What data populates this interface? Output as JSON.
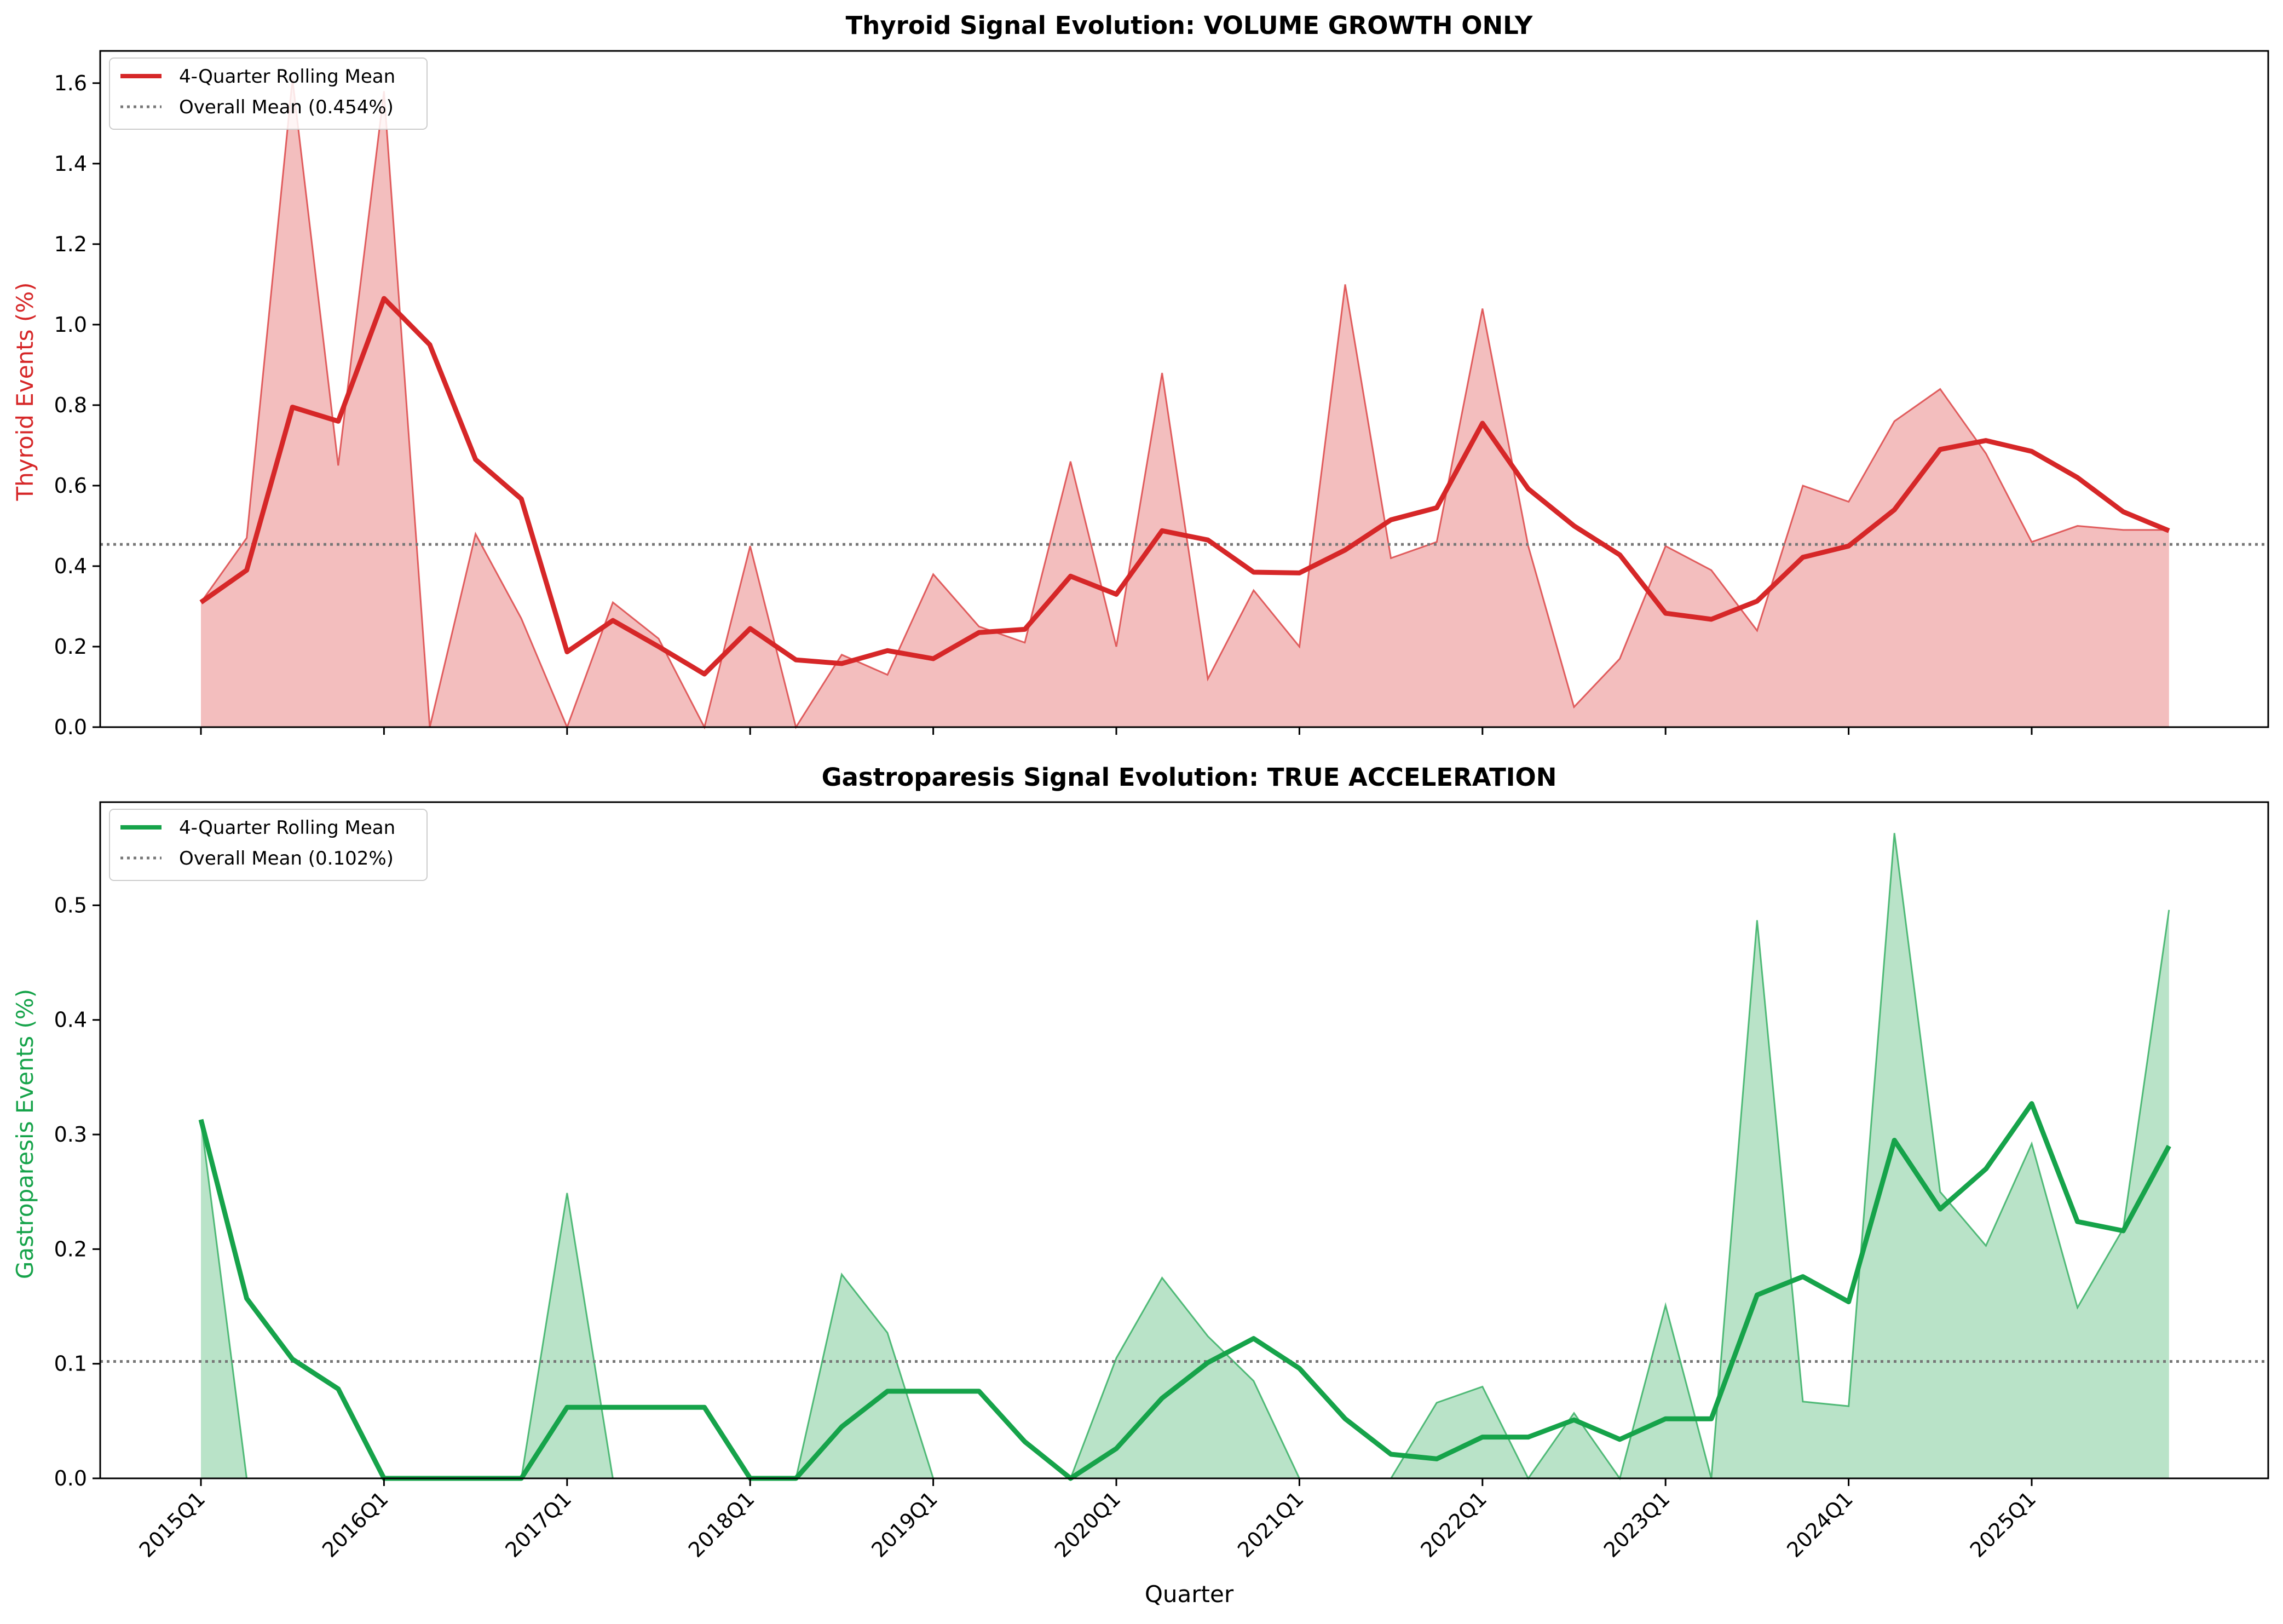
{
  "chart_data": [
    {
      "type": "area",
      "title": "Thyroid Signal Evolution: VOLUME GROWTH ONLY",
      "xlabel": "",
      "ylabel": "Thyroid Events (%)",
      "ylim": [
        0,
        1.68
      ],
      "yticks": [
        0.0,
        0.2,
        0.4,
        0.6,
        0.8,
        1.0,
        1.2,
        1.4,
        1.6
      ],
      "ytick_labels": [
        "0.0",
        "0.2",
        "0.4",
        "0.6",
        "0.8",
        "1.0",
        "1.2",
        "1.4",
        "1.6"
      ],
      "color": "#d62728",
      "grid": false,
      "legend_position": "top-left",
      "x": [
        "2015Q1",
        "2015Q2",
        "2015Q3",
        "2015Q4",
        "2016Q1",
        "2016Q2",
        "2016Q3",
        "2016Q4",
        "2017Q1",
        "2017Q2",
        "2017Q3",
        "2017Q4",
        "2018Q1",
        "2018Q2",
        "2018Q3",
        "2018Q4",
        "2019Q1",
        "2019Q2",
        "2019Q3",
        "2019Q4",
        "2020Q1",
        "2020Q2",
        "2020Q3",
        "2020Q4",
        "2021Q1",
        "2021Q2",
        "2021Q3",
        "2021Q4",
        "2022Q1",
        "2022Q2",
        "2022Q3",
        "2022Q4",
        "2023Q1",
        "2023Q2",
        "2023Q3",
        "2023Q4",
        "2024Q1",
        "2024Q2",
        "2024Q3",
        "2024Q4",
        "2025Q1",
        "2025Q2",
        "2025Q3",
        "2025Q4"
      ],
      "series": [
        {
          "kind": "area",
          "values": [
            0.31,
            0.47,
            1.61,
            0.65,
            1.58,
            0.0,
            0.48,
            0.27,
            0.0,
            0.31,
            0.22,
            0.0,
            0.45,
            0.0,
            0.18,
            0.13,
            0.38,
            0.25,
            0.21,
            0.66,
            0.2,
            0.88,
            0.12,
            0.34,
            0.2,
            1.1,
            0.42,
            0.46,
            1.04,
            0.45,
            0.05,
            0.17,
            0.45,
            0.39,
            0.24,
            0.6,
            0.56,
            0.76,
            0.84,
            0.68,
            0.46,
            0.5,
            0.49,
            0.49
          ]
        },
        {
          "name": "4-Quarter Rolling Mean",
          "kind": "line",
          "values": [
            0.31,
            0.39,
            0.795,
            0.76,
            1.065,
            0.95,
            0.665,
            0.567,
            0.187,
            0.265,
            0.2,
            0.132,
            0.245,
            0.167,
            0.158,
            0.19,
            0.17,
            0.235,
            0.243,
            0.375,
            0.33,
            0.488,
            0.465,
            0.385,
            0.383,
            0.44,
            0.515,
            0.545,
            0.755,
            0.592,
            0.5,
            0.428,
            0.283,
            0.268,
            0.313,
            0.422,
            0.45,
            0.54,
            0.69,
            0.712,
            0.685,
            0.62,
            0.535,
            0.488
          ]
        },
        {
          "name": "Overall Mean (0.454%)",
          "kind": "hline",
          "value": 0.454
        }
      ]
    },
    {
      "type": "area",
      "title": "Gastroparesis Signal Evolution: TRUE ACCELERATION",
      "xlabel": "Quarter",
      "ylabel": "Gastroparesis Events (%)",
      "ylim": [
        0,
        0.59
      ],
      "yticks": [
        0.0,
        0.1,
        0.2,
        0.3,
        0.4,
        0.5
      ],
      "ytick_labels": [
        "0.0",
        "0.1",
        "0.2",
        "0.3",
        "0.4",
        "0.5"
      ],
      "xtick_labels": [
        "2015Q1",
        "2016Q1",
        "2017Q1",
        "2018Q1",
        "2019Q1",
        "2020Q1",
        "2021Q1",
        "2022Q1",
        "2023Q1",
        "2024Q1",
        "2025Q1"
      ],
      "color": "#16a34a",
      "grid": false,
      "legend_position": "top-left",
      "x": [
        "2015Q1",
        "2015Q2",
        "2015Q3",
        "2015Q4",
        "2016Q1",
        "2016Q2",
        "2016Q3",
        "2016Q4",
        "2017Q1",
        "2017Q2",
        "2017Q3",
        "2017Q4",
        "2018Q1",
        "2018Q2",
        "2018Q3",
        "2018Q4",
        "2019Q1",
        "2019Q2",
        "2019Q3",
        "2019Q4",
        "2020Q1",
        "2020Q2",
        "2020Q3",
        "2020Q4",
        "2021Q1",
        "2021Q2",
        "2021Q3",
        "2021Q4",
        "2022Q1",
        "2022Q2",
        "2022Q3",
        "2022Q4",
        "2023Q1",
        "2023Q2",
        "2023Q3",
        "2023Q4",
        "2024Q1",
        "2024Q2",
        "2024Q3",
        "2024Q4",
        "2025Q1",
        "2025Q2",
        "2025Q3",
        "2025Q4"
      ],
      "series": [
        {
          "kind": "area",
          "values": [
            0.313,
            0.0,
            0.0,
            0.0,
            0.0,
            0.0,
            0.0,
            0.0,
            0.249,
            0.0,
            0.0,
            0.0,
            0.0,
            0.0,
            0.178,
            0.127,
            0.0,
            0.0,
            0.0,
            0.0,
            0.105,
            0.175,
            0.124,
            0.085,
            0.0,
            0.0,
            0.0,
            0.066,
            0.08,
            0.0,
            0.057,
            0.0,
            0.151,
            0.0,
            0.487,
            0.067,
            0.063,
            0.563,
            0.25,
            0.203,
            0.292,
            0.149,
            0.218,
            0.496
          ]
        },
        {
          "name": "4-Quarter Rolling Mean",
          "kind": "line",
          "values": [
            0.313,
            0.157,
            0.104,
            0.078,
            0.0,
            0.0,
            0.0,
            0.0,
            0.062,
            0.062,
            0.062,
            0.062,
            0.0,
            0.0,
            0.045,
            0.076,
            0.076,
            0.076,
            0.032,
            0.0,
            0.026,
            0.07,
            0.101,
            0.122,
            0.096,
            0.052,
            0.021,
            0.017,
            0.036,
            0.036,
            0.051,
            0.034,
            0.052,
            0.052,
            0.16,
            0.176,
            0.154,
            0.295,
            0.235,
            0.27,
            0.327,
            0.224,
            0.216,
            0.29
          ]
        },
        {
          "name": "Overall Mean (0.102%)",
          "kind": "hline",
          "value": 0.102
        }
      ]
    }
  ],
  "x_tick_labels": [
    "2015Q1",
    "2016Q1",
    "2017Q1",
    "2018Q1",
    "2019Q1",
    "2020Q1",
    "2021Q1",
    "2022Q1",
    "2023Q1",
    "2024Q1",
    "2025Q1"
  ],
  "shared_xlabel": "Quarter",
  "mean_line_color": "#777777"
}
